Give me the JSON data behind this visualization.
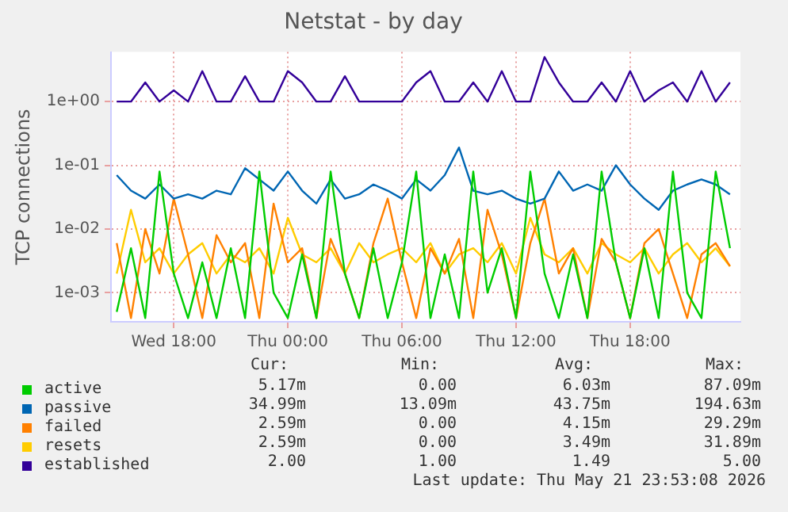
{
  "chart_data": {
    "type": "line",
    "title": "Netstat - by day",
    "ylabel": "TCP connections",
    "x": [
      "2026-05-20T15:00",
      "2026-05-20T15:45",
      "2026-05-20T16:30",
      "2026-05-20T17:15",
      "2026-05-20T18:00",
      "2026-05-20T18:45",
      "2026-05-20T19:30",
      "2026-05-20T20:15",
      "2026-05-20T21:00",
      "2026-05-20T21:45",
      "2026-05-20T22:30",
      "2026-05-20T23:15",
      "2026-05-21T00:00",
      "2026-05-21T00:45",
      "2026-05-21T01:30",
      "2026-05-21T02:15",
      "2026-05-21T03:00",
      "2026-05-21T03:45",
      "2026-05-21T04:30",
      "2026-05-21T05:15",
      "2026-05-21T06:00",
      "2026-05-21T06:45",
      "2026-05-21T07:30",
      "2026-05-21T08:15",
      "2026-05-21T09:00",
      "2026-05-21T09:45",
      "2026-05-21T10:30",
      "2026-05-21T11:15",
      "2026-05-21T12:00",
      "2026-05-21T12:45",
      "2026-05-21T13:30",
      "2026-05-21T14:15",
      "2026-05-21T15:00",
      "2026-05-21T15:45",
      "2026-05-21T16:30",
      "2026-05-21T17:15",
      "2026-05-21T18:00",
      "2026-05-21T18:45",
      "2026-05-21T19:30",
      "2026-05-21T20:15",
      "2026-05-21T21:00",
      "2026-05-21T21:45",
      "2026-05-21T22:30",
      "2026-05-21T23:15"
    ],
    "series": [
      {
        "name": "active",
        "color": "#00cc00",
        "values": [
          0.0005,
          0.005,
          0.0004,
          0.08,
          0.002,
          0.0004,
          0.003,
          0.0004,
          0.005,
          0.0004,
          0.08,
          0.001,
          0.0004,
          0.004,
          0.0004,
          0.08,
          0.002,
          0.0004,
          0.005,
          0.0004,
          0.003,
          0.08,
          0.0004,
          0.004,
          0.0004,
          0.08,
          0.001,
          0.005,
          0.0004,
          0.08,
          0.002,
          0.0004,
          0.004,
          0.0004,
          0.08,
          0.003,
          0.0004,
          0.005,
          0.0004,
          0.08,
          0.001,
          0.0004,
          0.08,
          0.005
        ]
      },
      {
        "name": "passive",
        "color": "#0066b3",
        "values": [
          0.07,
          0.04,
          0.03,
          0.05,
          0.03,
          0.035,
          0.03,
          0.04,
          0.035,
          0.09,
          0.06,
          0.04,
          0.08,
          0.04,
          0.025,
          0.06,
          0.03,
          0.035,
          0.05,
          0.04,
          0.03,
          0.06,
          0.04,
          0.07,
          0.19,
          0.04,
          0.035,
          0.04,
          0.03,
          0.025,
          0.03,
          0.08,
          0.04,
          0.05,
          0.04,
          0.1,
          0.05,
          0.03,
          0.02,
          0.04,
          0.05,
          0.06,
          0.05,
          0.035
        ]
      },
      {
        "name": "failed",
        "color": "#ff8000",
        "values": [
          0.006,
          0.0004,
          0.01,
          0.002,
          0.03,
          0.004,
          0.0004,
          0.008,
          0.003,
          0.006,
          0.0004,
          0.025,
          0.003,
          0.005,
          0.0004,
          0.007,
          0.002,
          0.0004,
          0.006,
          0.03,
          0.003,
          0.0004,
          0.005,
          0.002,
          0.007,
          0.0004,
          0.02,
          0.004,
          0.0004,
          0.006,
          0.03,
          0.002,
          0.005,
          0.0004,
          0.007,
          0.003,
          0.0004,
          0.006,
          0.01,
          0.002,
          0.0004,
          0.004,
          0.006,
          0.0026
        ]
      },
      {
        "name": "resets",
        "color": "#ffcc00",
        "values": [
          0.002,
          0.02,
          0.003,
          0.005,
          0.002,
          0.004,
          0.006,
          0.002,
          0.004,
          0.003,
          0.005,
          0.002,
          0.015,
          0.004,
          0.003,
          0.005,
          0.002,
          0.006,
          0.003,
          0.004,
          0.005,
          0.003,
          0.006,
          0.002,
          0.004,
          0.005,
          0.003,
          0.006,
          0.002,
          0.015,
          0.004,
          0.003,
          0.005,
          0.002,
          0.006,
          0.004,
          0.003,
          0.005,
          0.002,
          0.004,
          0.006,
          0.003,
          0.005,
          0.0026
        ]
      },
      {
        "name": "established",
        "color": "#330099",
        "values": [
          1,
          1,
          2,
          1,
          1.5,
          1,
          3,
          1,
          1,
          2.5,
          1,
          1,
          3,
          2,
          1,
          1,
          2.5,
          1,
          1,
          1,
          1,
          2,
          3,
          1,
          1,
          2,
          1,
          3,
          1,
          1,
          5,
          2,
          1,
          1,
          2,
          1,
          3,
          1,
          1.5,
          2,
          1,
          3,
          1,
          2
        ]
      }
    ],
    "xlim": [
      "2026-05-20T14:42",
      "2026-05-21T23:48"
    ],
    "xticks": [
      {
        "value": "2026-05-20T18:00",
        "label": "Wed 18:00"
      },
      {
        "value": "2026-05-21T00:00",
        "label": "Thu 00:00"
      },
      {
        "value": "2026-05-21T06:00",
        "label": "Thu 06:00"
      },
      {
        "value": "2026-05-21T12:00",
        "label": "Thu 12:00"
      },
      {
        "value": "2026-05-21T18:00",
        "label": "Thu 18:00"
      }
    ],
    "ylim": [
      0.00035,
      6
    ],
    "yticks": [
      {
        "value": 0.001,
        "label": "1e-03"
      },
      {
        "value": 0.01,
        "label": "1e-02"
      },
      {
        "value": 0.1,
        "label": "1e-01"
      },
      {
        "value": 1,
        "label": "1e+00"
      }
    ],
    "log": "y",
    "grid": true,
    "legend": "bottom",
    "marker": "none",
    "line_style": "solid",
    "annotations": [
      "Cur:",
      "Min:",
      "Avg:",
      "Max:",
      "5.17m",
      "0.00",
      "6.03m",
      "87.09m",
      "34.99m",
      "13.09m",
      "43.75m",
      "194.63m",
      "2.59m",
      "0.00",
      "4.15m",
      "29.29m",
      "2.59m",
      "0.00",
      "3.49m",
      "31.89m",
      "2.00",
      "1.00",
      "1.49",
      "5.00",
      "Last update: Thu May 21 23:53:08 2026"
    ]
  }
}
